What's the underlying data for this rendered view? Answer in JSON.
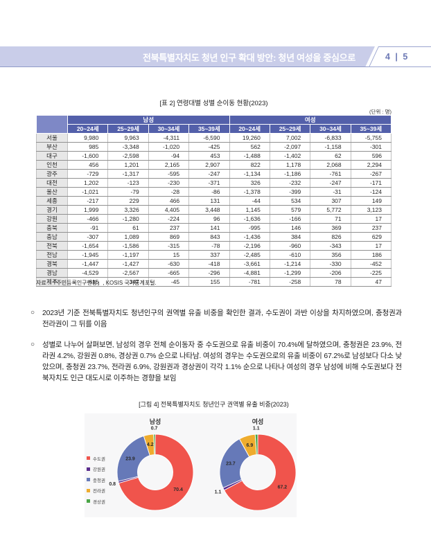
{
  "header": {
    "title": "전북특별자치도 청년 인구 확대 방안: 청년 여성을 중심으로",
    "page_label": "4 | 5"
  },
  "table": {
    "caption": "[표 2] 연령대별 성별 순이동 현황(2023)",
    "unit": "(단위 : 명)",
    "groups": [
      "남성",
      "여성"
    ],
    "age_cols": [
      "20~24세",
      "25~29세",
      "30~34세",
      "35~39세"
    ],
    "rows": [
      {
        "region": "서울",
        "values": [
          "9,980",
          "9,963",
          "-4,311",
          "-6,590",
          "19,260",
          "7,002",
          "-6,833",
          "-5,755"
        ]
      },
      {
        "region": "부산",
        "values": [
          "985",
          "-3,348",
          "-1,020",
          "-425",
          "562",
          "-2,097",
          "-1,158",
          "-301"
        ]
      },
      {
        "region": "대구",
        "values": [
          "-1,600",
          "-2,598",
          "-94",
          "453",
          "-1,488",
          "-1,402",
          "62",
          "596"
        ]
      },
      {
        "region": "인천",
        "values": [
          "456",
          "1,201",
          "2,165",
          "2,907",
          "822",
          "1,178",
          "2,068",
          "2,294"
        ]
      },
      {
        "region": "광주",
        "values": [
          "-729",
          "-1,317",
          "-595",
          "-247",
          "-1,134",
          "-1,186",
          "-761",
          "-267"
        ]
      },
      {
        "region": "대전",
        "values": [
          "1,202",
          "-123",
          "-230",
          "-371",
          "326",
          "-232",
          "-247",
          "-171"
        ]
      },
      {
        "region": "울산",
        "values": [
          "-1,021",
          "-79",
          "-28",
          "-86",
          "-1,378",
          "-399",
          "-31",
          "-124"
        ]
      },
      {
        "region": "세종",
        "values": [
          "-217",
          "229",
          "466",
          "131",
          "-44",
          "534",
          "307",
          "149"
        ]
      },
      {
        "region": "경기",
        "values": [
          "1,999",
          "3,326",
          "4,405",
          "3,448",
          "1,145",
          "579",
          "5,772",
          "3,123"
        ]
      },
      {
        "region": "강원",
        "values": [
          "-466",
          "-1,280",
          "-224",
          "96",
          "-1,636",
          "-166",
          "71",
          "17"
        ]
      },
      {
        "region": "충북",
        "values": [
          "-91",
          "61",
          "237",
          "141",
          "-995",
          "146",
          "369",
          "237"
        ]
      },
      {
        "region": "충남",
        "values": [
          "-307",
          "1,089",
          "869",
          "843",
          "-1,436",
          "384",
          "826",
          "629"
        ]
      },
      {
        "region": "전북",
        "values": [
          "-1,654",
          "-1,586",
          "-315",
          "-78",
          "-2,196",
          "-960",
          "-343",
          "17"
        ]
      },
      {
        "region": "전남",
        "values": [
          "-1,945",
          "-1,197",
          "15",
          "337",
          "-2,485",
          "-610",
          "356",
          "186"
        ]
      },
      {
        "region": "경북",
        "values": [
          "-1,447",
          "-1,427",
          "-630",
          "-418",
          "-3,661",
          "-1,214",
          "-330",
          "-452"
        ]
      },
      {
        "region": "경남",
        "values": [
          "-4,529",
          "-2,567",
          "-665",
          "-296",
          "-4,881",
          "-1,299",
          "-206",
          "-225"
        ]
      },
      {
        "region": "제주",
        "values": [
          "-616",
          "-347",
          "-45",
          "155",
          "-781",
          "-258",
          "78",
          "47"
        ]
      }
    ]
  },
  "source_note": "자료 : 「주민등록인구현황」, KOSIS 국가통계포털.",
  "bullets": [
    {
      "marker": "○",
      "text": "2023년 기준 전북특별자치도 청년인구의 권역별 유출 비중을 확인한 결과, 수도권이 과반 이상을 차지하였으며, 충청권과 전라권이 그 뒤를 이음"
    },
    {
      "marker": "○",
      "text": "성별로 나누어 살펴보면, 남성의 경우 전체 순이동자 중 수도권으로 유출 비중이 70.4%에 달하였으며, 충청권은 23.9%, 전라권 4.2%, 강원권 0.8%, 경상권 0.7% 순으로 나타남. 여성의 경우는 수도권으로의 유출 비중이 67.2%로 남성보다 다소 낮았으며, 충청권 23.7%, 전라권 6.9%, 강원권과 경상권이 각각 1.1% 순으로 나타나 여성의 경우 남성에 비해 수도권보다 전북자치도 인근 대도시로 이주하는 경향을 보임"
    }
  ],
  "figure": {
    "caption": "[그림 4] 전북특별자치도 청년인구 권역별 유출 비중(2023)"
  },
  "chart_data": {
    "type": "pie",
    "subtype": "donut",
    "panel_background": "#f7f7f8",
    "legend_position": "left",
    "legend": [
      {
        "label": "수도권",
        "color": "#f0544c"
      },
      {
        "label": "강원권",
        "color": "#5b2c8d"
      },
      {
        "label": "충청권",
        "color": "#6679b8"
      },
      {
        "label": "전라권",
        "color": "#eeac2e"
      },
      {
        "label": "경상권",
        "color": "#4aa546"
      }
    ],
    "charts": [
      {
        "title": "남성",
        "categories": [
          "수도권",
          "강원권",
          "충청권",
          "전라권",
          "경상권"
        ],
        "values": [
          70.4,
          0.8,
          23.9,
          4.2,
          0.7
        ]
      },
      {
        "title": "여성",
        "categories": [
          "수도권",
          "강원권",
          "충청권",
          "전라권",
          "경상권"
        ],
        "values": [
          67.2,
          1.1,
          23.7,
          6.9,
          1.1
        ]
      }
    ]
  }
}
